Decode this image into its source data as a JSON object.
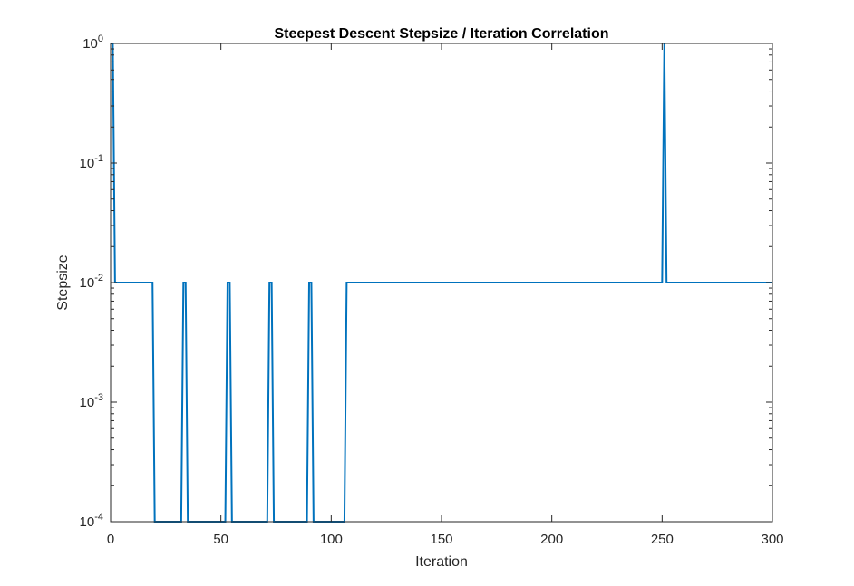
{
  "chart_data": {
    "type": "line",
    "title": "Steepest Descent Stepsize / Iteration Correlation",
    "xlabel": "Iteration",
    "ylabel": "Stepsize",
    "xlim": [
      0,
      300
    ],
    "ylim": [
      0.0001,
      1
    ],
    "yscale": "log",
    "grid": false,
    "line_color": "#0072BD",
    "axis_color": "#262626",
    "x_ticks": [
      {
        "value": 0,
        "label": "0"
      },
      {
        "value": 50,
        "label": "50"
      },
      {
        "value": 100,
        "label": "100"
      },
      {
        "value": 150,
        "label": "150"
      },
      {
        "value": 200,
        "label": "200"
      },
      {
        "value": 250,
        "label": "250"
      },
      {
        "value": 300,
        "label": "300"
      }
    ],
    "y_ticks": [
      {
        "value": 0.0001,
        "base": "10",
        "exp": "-4"
      },
      {
        "value": 0.001,
        "base": "10",
        "exp": "-3"
      },
      {
        "value": 0.01,
        "base": "10",
        "exp": "-2"
      },
      {
        "value": 0.1,
        "base": "10",
        "exp": "-1"
      },
      {
        "value": 1,
        "base": "10",
        "exp": "0"
      }
    ],
    "series": [
      {
        "x": [
          0,
          1,
          2,
          19,
          20,
          32,
          33,
          34,
          35,
          52,
          53,
          54,
          55,
          71,
          72,
          73,
          74,
          89,
          90,
          91,
          92,
          106,
          107,
          250,
          251,
          252,
          300
        ],
        "y": [
          1,
          1,
          0.01,
          0.01,
          0.0001,
          0.0001,
          0.01,
          0.01,
          0.0001,
          0.0001,
          0.01,
          0.01,
          0.0001,
          0.0001,
          0.01,
          0.01,
          0.0001,
          0.0001,
          0.01,
          0.01,
          0.0001,
          0.0001,
          0.01,
          0.01,
          1,
          0.01,
          0.01
        ]
      }
    ]
  }
}
